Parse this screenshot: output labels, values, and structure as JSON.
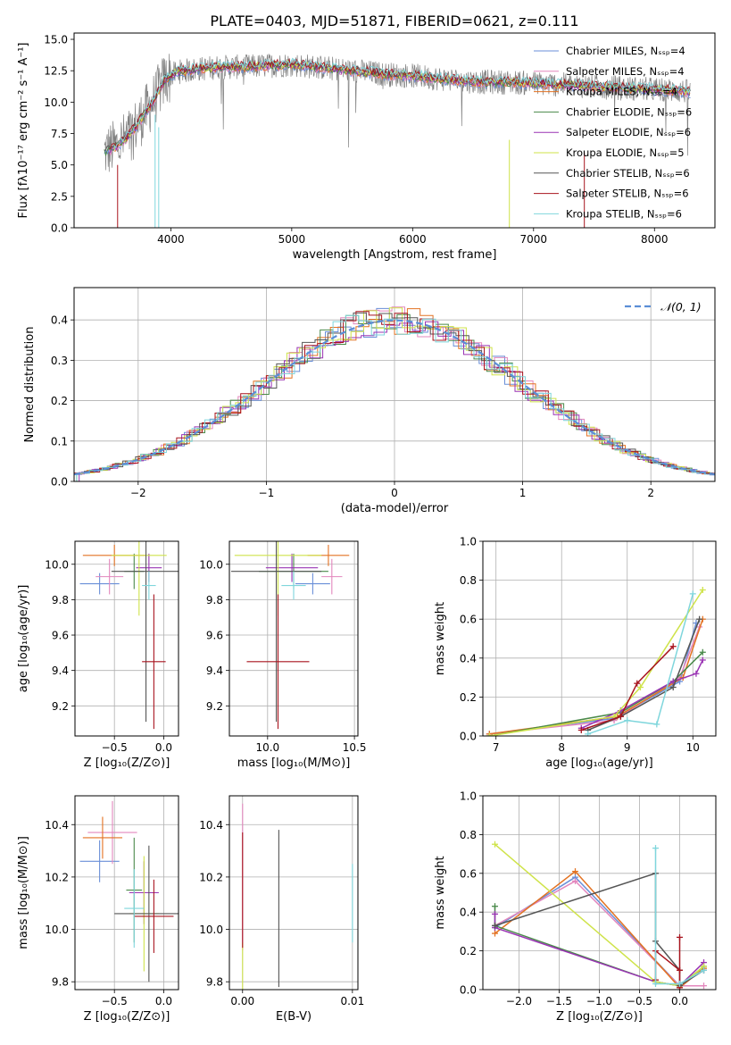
{
  "figure_title": "PLATE=0403, MJD=51871, FIBERID=0621, z=0.111",
  "colors": {
    "Chabrier MILES": "#6a8fd8",
    "Salpeter MILES": "#e387bd",
    "Kroupa MILES": "#e37222",
    "Chabrier ELODIE": "#4a8a4a",
    "Salpeter ELODIE": "#9a34b4",
    "Kroupa ELODIE": "#cfe34a",
    "Chabrier STELIB": "#555555",
    "Salpeter STELIB": "#a8141e",
    "Kroupa STELIB": "#7fd6dc",
    "data": "#808080",
    "normal": "#5b8ed6"
  },
  "chart_data": [
    {
      "id": "spectrum",
      "type": "line",
      "title": "PLATE=0403, MJD=51871, FIBERID=0621, z=0.111",
      "xlabel": "wavelength [Angstrom, rest frame]",
      "ylabel": "Flux [fλ10⁻¹⁷ erg cm⁻² s⁻¹ A⁻¹]",
      "xlim": [
        3200,
        8500
      ],
      "ylim": [
        0,
        15.5
      ],
      "xticks": [
        4000,
        5000,
        6000,
        7000,
        8000
      ],
      "yticks": [
        0.0,
        2.5,
        5.0,
        7.5,
        10.0,
        12.5,
        15.0
      ],
      "ytick_labels": [
        "0.0",
        "2.5",
        "5.0",
        "7.5",
        "10.0",
        "12.5",
        "15.0"
      ],
      "legend": [
        "Chabrier MILES, Nₛₛₚ=4",
        "Salpeter MILES, Nₛₛₚ=4",
        "Kroupa MILES, Nₛₛₚ=4",
        "Chabrier ELODIE, Nₛₛₚ=6",
        "Salpeter ELODIE, Nₛₛₚ=6",
        "Kroupa ELODIE, Nₛₛₚ=5",
        "Chabrier STELIB, Nₛₛₚ=6",
        "Salpeter STELIB, Nₛₛₚ=6",
        "Kroupa STELIB, Nₛₛₚ=6"
      ],
      "legend_position": "top-right",
      "continuum_x": [
        3450,
        3550,
        3650,
        3750,
        3850,
        3950,
        4050,
        4200,
        4400,
        4600,
        4800,
        5000,
        5200,
        5400,
        5600,
        5800,
        6000,
        6200,
        6400,
        6600,
        6800,
        7000,
        7200,
        7400,
        7600,
        7800,
        8000,
        8200,
        8300
      ],
      "continuum_y": [
        6.0,
        6.5,
        7.3,
        8.6,
        10.0,
        11.8,
        12.4,
        12.6,
        12.8,
        12.8,
        12.9,
        13.0,
        12.8,
        12.6,
        12.4,
        12.2,
        12.1,
        11.9,
        11.7,
        11.6,
        11.6,
        11.5,
        11.4,
        11.3,
        11.2,
        11.1,
        11.0,
        10.9,
        10.8
      ]
    },
    {
      "id": "residuals",
      "type": "bar",
      "xlabel": "(data-model)/error",
      "ylabel": "Normed distribution",
      "xlim": [
        -2.5,
        2.5
      ],
      "ylim": [
        0,
        0.48
      ],
      "xticks": [
        -2,
        -1,
        0,
        1,
        2
      ],
      "xtick_labels": [
        "−2",
        "−1",
        "0",
        "1",
        "2"
      ],
      "yticks": [
        0.0,
        0.1,
        0.2,
        0.3,
        0.4
      ],
      "ytick_labels": [
        "0.0",
        "0.1",
        "0.2",
        "0.3",
        "0.4"
      ],
      "legend": [
        "𝒩(0, 1)"
      ],
      "legend_position": "top-right",
      "bin_width": 0.1
    },
    {
      "id": "age-Z",
      "type": "scatter",
      "xlabel": "Z [log₁₀(Z/Z⊙)]",
      "ylabel": "age  [log₁₀(age/yr)]",
      "xlim": [
        -0.9,
        0.15
      ],
      "ylim": [
        9.03,
        10.13
      ],
      "xticks": [
        -0.5,
        0.0
      ],
      "xtick_labels": [
        "−0.5",
        "0.0"
      ],
      "yticks": [
        9.2,
        9.4,
        9.6,
        9.8,
        10.0
      ],
      "ytick_labels": [
        "9.2",
        "9.4",
        "9.6",
        "9.8",
        "10.0"
      ],
      "points": [
        {
          "x": -0.65,
          "y": 9.89,
          "xerr": 0.2,
          "yerr": 0.06,
          "c": "Chabrier MILES"
        },
        {
          "x": -0.55,
          "y": 9.93,
          "xerr": 0.14,
          "yerr": 0.1,
          "c": "Salpeter MILES"
        },
        {
          "x": -0.5,
          "y": 10.05,
          "xerr": 0.32,
          "yerr": 0.06,
          "c": "Kroupa MILES"
        },
        {
          "x": -0.3,
          "y": 9.96,
          "xerr": 0.1,
          "yerr": 0.1,
          "c": "Chabrier ELODIE"
        },
        {
          "x": -0.15,
          "y": 9.98,
          "xerr": 0.13,
          "yerr": 0.08,
          "c": "Salpeter ELODIE"
        },
        {
          "x": -0.25,
          "y": 10.05,
          "xerr": 0.28,
          "yerr": 0.34,
          "c": "Kroupa ELODIE"
        },
        {
          "x": -0.18,
          "y": 9.96,
          "xerr": 0.35,
          "yerr": 0.85,
          "c": "Chabrier STELIB"
        },
        {
          "x": -0.1,
          "y": 9.45,
          "xerr": 0.12,
          "yerr": 0.38,
          "c": "Salpeter STELIB"
        },
        {
          "x": -0.15,
          "y": 9.88,
          "xerr": 0.07,
          "yerr": 0.08,
          "c": "Kroupa STELIB"
        }
      ]
    },
    {
      "id": "age-mass",
      "type": "scatter",
      "xlabel": "mass [log₁₀(M/M⊙)]",
      "xlim": [
        9.78,
        10.52
      ],
      "ylim": [
        9.03,
        10.13
      ],
      "xticks": [
        10.0,
        10.5
      ],
      "xtick_labels": [
        "10.0",
        "10.5"
      ],
      "yticks": [
        9.2,
        9.4,
        9.6,
        9.8,
        10.0
      ],
      "ytick_labels": [
        "9.2",
        "9.4",
        "9.6",
        "9.8",
        "10.0"
      ],
      "points": [
        {
          "x": 10.26,
          "y": 9.89,
          "xerr": 0.1,
          "yerr": 0.06,
          "c": "Chabrier MILES"
        },
        {
          "x": 10.37,
          "y": 9.93,
          "xerr": 0.06,
          "yerr": 0.1,
          "c": "Salpeter MILES"
        },
        {
          "x": 10.35,
          "y": 10.05,
          "xerr": 0.12,
          "yerr": 0.06,
          "c": "Kroupa MILES"
        },
        {
          "x": 10.15,
          "y": 9.96,
          "xerr": 0.2,
          "yerr": 0.1,
          "c": "Chabrier ELODIE"
        },
        {
          "x": 10.14,
          "y": 9.98,
          "xerr": 0.15,
          "yerr": 0.08,
          "c": "Salpeter ELODIE"
        },
        {
          "x": 10.06,
          "y": 10.05,
          "xerr": 0.25,
          "yerr": 0.34,
          "c": "Kroupa ELODIE"
        },
        {
          "x": 10.05,
          "y": 9.96,
          "xerr": 0.26,
          "yerr": 0.85,
          "c": "Chabrier STELIB"
        },
        {
          "x": 10.06,
          "y": 9.45,
          "xerr": 0.18,
          "yerr": 0.38,
          "c": "Salpeter STELIB"
        },
        {
          "x": 10.15,
          "y": 9.88,
          "xerr": 0.07,
          "yerr": 0.08,
          "c": "Kroupa STELIB"
        }
      ]
    },
    {
      "id": "weight-age",
      "type": "line",
      "xlabel": "age  [log₁₀(age/yr)]",
      "ylabel": "mass weight",
      "xlim": [
        6.8,
        10.35
      ],
      "ylim": [
        0,
        1
      ],
      "xticks": [
        7,
        8,
        9,
        10
      ],
      "xtick_labels": [
        "7",
        "8",
        "9",
        "10"
      ],
      "yticks": [
        0.0,
        0.2,
        0.4,
        0.6,
        0.8,
        1.0
      ],
      "ytick_labels": [
        "0.0",
        "0.2",
        "0.4",
        "0.6",
        "0.8",
        "1.0"
      ],
      "series": [
        {
          "c": "Chabrier MILES",
          "x": [
            6.9,
            8.8,
            9.8,
            10.05
          ],
          "y": [
            0.01,
            0.09,
            0.28,
            0.58
          ]
        },
        {
          "c": "Salpeter MILES",
          "x": [
            6.9,
            8.8,
            9.8,
            10.1
          ],
          "y": [
            0.01,
            0.08,
            0.3,
            0.56
          ]
        },
        {
          "c": "Kroupa MILES",
          "x": [
            6.9,
            8.85,
            9.85,
            10.15
          ],
          "y": [
            0.01,
            0.1,
            0.3,
            0.6
          ]
        },
        {
          "c": "Chabrier ELODIE",
          "x": [
            6.9,
            8.9,
            9.7,
            10.15
          ],
          "y": [
            0.0,
            0.12,
            0.28,
            0.43
          ]
        },
        {
          "c": "Salpeter ELODIE",
          "x": [
            8.3,
            8.9,
            9.7,
            10.05,
            10.15
          ],
          "y": [
            0.04,
            0.13,
            0.28,
            0.32,
            0.39
          ]
        },
        {
          "c": "Kroupa ELODIE",
          "x": [
            6.9,
            8.8,
            9.2,
            10.15
          ],
          "y": [
            0.0,
            0.1,
            0.25,
            0.75
          ]
        },
        {
          "c": "Chabrier STELIB",
          "x": [
            8.4,
            8.9,
            9.7,
            10.1
          ],
          "y": [
            0.03,
            0.1,
            0.25,
            0.6
          ]
        },
        {
          "c": "Salpeter STELIB",
          "x": [
            8.3,
            8.9,
            9.15,
            9.7
          ],
          "y": [
            0.03,
            0.1,
            0.27,
            0.46
          ]
        },
        {
          "c": "Kroupa STELIB",
          "x": [
            8.4,
            9.0,
            9.45,
            10.0
          ],
          "y": [
            0.01,
            0.08,
            0.06,
            0.73
          ]
        }
      ]
    },
    {
      "id": "mass-Z",
      "type": "scatter",
      "xlabel": "Z [log₁₀(Z/Z⊙)]",
      "ylabel": "mass [log₁₀(M/M⊙)]",
      "xlim": [
        -0.9,
        0.15
      ],
      "ylim": [
        9.77,
        10.51
      ],
      "xticks": [
        -0.5,
        0.0
      ],
      "xtick_labels": [
        "−0.5",
        "0.0"
      ],
      "yticks": [
        9.8,
        10.0,
        10.2,
        10.4
      ],
      "ytick_labels": [
        "9.8",
        "10.0",
        "10.2",
        "10.4"
      ],
      "points": [
        {
          "x": -0.65,
          "y": 10.26,
          "xerr": 0.2,
          "yerr": 0.08,
          "c": "Chabrier MILES"
        },
        {
          "x": -0.52,
          "y": 10.37,
          "xerr": 0.25,
          "yerr": 0.12,
          "c": "Salpeter MILES"
        },
        {
          "x": -0.62,
          "y": 10.35,
          "xerr": 0.2,
          "yerr": 0.08,
          "c": "Kroupa MILES"
        },
        {
          "x": -0.3,
          "y": 10.15,
          "xerr": 0.08,
          "yerr": 0.2,
          "c": "Chabrier ELODIE"
        },
        {
          "x": -0.2,
          "y": 10.14,
          "xerr": 0.15,
          "yerr": 0.12,
          "c": "Salpeter ELODIE"
        },
        {
          "x": -0.2,
          "y": 10.06,
          "xerr": 0.15,
          "yerr": 0.22,
          "c": "Kroupa ELODIE"
        },
        {
          "x": -0.15,
          "y": 10.06,
          "xerr": 0.35,
          "yerr": 0.26,
          "c": "Chabrier STELIB"
        },
        {
          "x": -0.1,
          "y": 10.05,
          "xerr": 0.2,
          "yerr": 0.14,
          "c": "Salpeter STELIB"
        },
        {
          "x": -0.3,
          "y": 10.08,
          "xerr": 0.1,
          "yerr": 0.15,
          "c": "Kroupa STELIB"
        }
      ]
    },
    {
      "id": "mass-EBV",
      "type": "scatter",
      "xlabel": "E(B-V)",
      "xlim": [
        -0.0012,
        0.0105
      ],
      "ylim": [
        9.77,
        10.51
      ],
      "xticks": [
        0.0,
        0.01
      ],
      "xtick_labels": [
        "0.00",
        "0.01"
      ],
      "yticks": [
        9.8,
        10.0,
        10.2,
        10.4
      ],
      "ytick_labels": [
        "9.8",
        "10.0",
        "10.2",
        "10.4"
      ],
      "points": [
        {
          "x": 0.0,
          "y": 10.2,
          "xerr": 0,
          "yerr": 0.28,
          "c": "Salpeter MILES"
        },
        {
          "x": 0.0,
          "y": 9.85,
          "xerr": 0,
          "yerr": 0.1,
          "c": "Kroupa ELODIE"
        },
        {
          "x": 0.0,
          "y": 10.15,
          "xerr": 0,
          "yerr": 0.22,
          "c": "Salpeter STELIB"
        },
        {
          "x": 0.0033,
          "y": 10.08,
          "xerr": 0,
          "yerr": 0.3,
          "c": "Chabrier STELIB"
        },
        {
          "x": 0.01,
          "y": 10.1,
          "xerr": 0,
          "yerr": 0.15,
          "c": "Kroupa STELIB"
        }
      ]
    },
    {
      "id": "weight-Z",
      "type": "line",
      "xlabel": "Z [log₁₀(Z/Z⊙)]",
      "ylabel": "mass weight",
      "xlim": [
        -2.45,
        0.45
      ],
      "ylim": [
        0,
        1
      ],
      "xticks": [
        -2.0,
        -1.5,
        -1.0,
        -0.5,
        0.0
      ],
      "xtick_labels": [
        "−2.0",
        "−1.5",
        "−1.0",
        "−0.5",
        "0.0"
      ],
      "yticks": [
        0.0,
        0.2,
        0.4,
        0.6,
        0.8,
        1.0
      ],
      "ytick_labels": [
        "0.0",
        "0.2",
        "0.4",
        "0.6",
        "0.8",
        "1.0"
      ],
      "series": [
        {
          "c": "Chabrier MILES",
          "x": [
            -2.3,
            -1.3,
            0.0,
            0.3
          ],
          "y": [
            0.32,
            0.58,
            0.02,
            0.1
          ]
        },
        {
          "c": "Salpeter MILES",
          "x": [
            -2.3,
            -1.3,
            0.0,
            0.3
          ],
          "y": [
            0.33,
            0.56,
            0.02,
            0.02
          ]
        },
        {
          "c": "Kroupa MILES",
          "x": [
            -2.3,
            -1.3,
            0.0,
            0.3
          ],
          "y": [
            0.29,
            0.61,
            0.01,
            0.11
          ]
        },
        {
          "c": "Chabrier ELODIE",
          "x": [
            -2.3,
            -2.3,
            -0.3,
            0.0,
            0.3
          ],
          "y": [
            0.43,
            0.33,
            0.04,
            0.02,
            0.12
          ]
        },
        {
          "c": "Salpeter ELODIE",
          "x": [
            -2.3,
            -2.3,
            -0.3,
            0.0,
            0.3
          ],
          "y": [
            0.39,
            0.32,
            0.04,
            0.02,
            0.14
          ]
        },
        {
          "c": "Kroupa ELODIE",
          "x": [
            -2.3,
            -0.3,
            0.0,
            0.3
          ],
          "y": [
            0.75,
            0.04,
            0.02,
            0.12
          ]
        },
        {
          "c": "Chabrier STELIB",
          "x": [
            -2.3,
            -0.3,
            -0.3,
            0.0,
            0.0,
            0.3
          ],
          "y": [
            0.33,
            0.6,
            0.25,
            0.1,
            0.02,
            0.1
          ]
        },
        {
          "c": "Salpeter STELIB",
          "x": [
            -0.3,
            -0.3,
            0.0,
            0.0,
            0.0
          ],
          "y": [
            0.05,
            0.2,
            0.1,
            0.27,
            0.01
          ]
        },
        {
          "c": "Kroupa STELIB",
          "x": [
            -0.3,
            -0.3,
            0.0,
            0.3
          ],
          "y": [
            0.73,
            0.03,
            0.03,
            0.1
          ]
        }
      ]
    }
  ]
}
